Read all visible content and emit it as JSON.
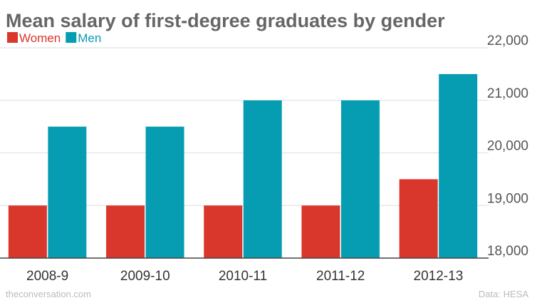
{
  "chart_data": {
    "type": "bar",
    "title": "Mean salary of first-degree graduates by gender",
    "categories": [
      "2008-9",
      "2009-10",
      "2010-11",
      "2011-12",
      "2012-13"
    ],
    "series": [
      {
        "name": "Women",
        "color": "#d9372b",
        "values": [
          19000,
          19000,
          19000,
          19000,
          19500
        ]
      },
      {
        "name": "Men",
        "color": "#069db3",
        "values": [
          20500,
          20500,
          21000,
          21000,
          21500
        ]
      }
    ],
    "ylim": [
      18000,
      22000
    ],
    "yticks": [
      "18,000",
      "19,000",
      "20,000",
      "21,000",
      "22,000"
    ],
    "ytick_values": [
      18000,
      19000,
      20000,
      21000,
      22000
    ],
    "xlabel": "",
    "ylabel": "",
    "grid": true,
    "legend_position": "top-left",
    "y_axis_side": "right"
  },
  "footer": {
    "left": "theconversation.com",
    "right": "Data: HESA"
  }
}
